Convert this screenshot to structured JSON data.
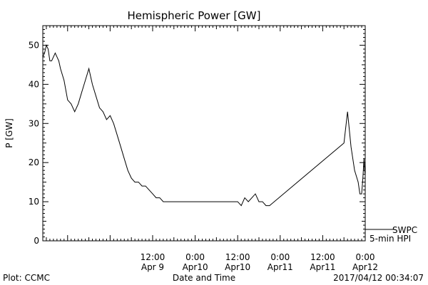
{
  "chart_data": {
    "type": "line",
    "title": "Hemispheric Power [GW]",
    "ylabel": "P [GW]",
    "xlabel": "Date and Time",
    "ylim": [
      0,
      55
    ],
    "yticks": [
      0,
      10,
      20,
      30,
      40,
      50
    ],
    "xrange": [
      "2017-04-08T05:00",
      "2017-04-12T00:00"
    ],
    "xticks": [
      {
        "t": "2017-04-09T12:00",
        "line1": "12:00",
        "line2": "Apr 9"
      },
      {
        "t": "2017-04-10T00:00",
        "line1": "0:00",
        "line2": "Apr10"
      },
      {
        "t": "2017-04-10T12:00",
        "line1": "12:00",
        "line2": "Apr10"
      },
      {
        "t": "2017-04-11T00:00",
        "line1": "0:00",
        "line2": "Apr11"
      },
      {
        "t": "2017-04-11T12:00",
        "line1": "12:00",
        "line2": "Apr11"
      },
      {
        "t": "2017-04-12T00:00",
        "line1": "0:00",
        "line2": "Apr12"
      }
    ],
    "grid": false,
    "legend": [
      "SWPC",
      "5-min HPI"
    ],
    "series": [
      {
        "x": [
          "2017-04-08T05:00",
          "2017-04-08T05:30",
          "2017-04-08T06:00",
          "2017-04-08T06:30",
          "2017-04-08T07:00",
          "2017-04-08T07:30",
          "2017-04-08T08:00",
          "2017-04-08T08:30",
          "2017-04-08T09:00",
          "2017-04-08T09:30",
          "2017-04-08T10:00",
          "2017-04-08T11:00",
          "2017-04-08T12:00",
          "2017-04-08T13:00",
          "2017-04-08T13:30",
          "2017-04-08T14:00",
          "2017-04-08T15:00",
          "2017-04-08T16:00",
          "2017-04-08T17:00",
          "2017-04-08T18:00",
          "2017-04-08T19:00",
          "2017-04-08T20:00",
          "2017-04-08T21:00",
          "2017-04-08T22:00",
          "2017-04-08T23:00",
          "2017-04-09T00:00",
          "2017-04-09T01:00",
          "2017-04-09T02:00",
          "2017-04-09T03:00",
          "2017-04-09T04:00",
          "2017-04-09T05:00",
          "2017-04-09T06:00",
          "2017-04-09T07:00",
          "2017-04-09T08:00",
          "2017-04-09T09:00",
          "2017-04-09T10:00",
          "2017-04-09T11:00",
          "2017-04-09T12:00",
          "2017-04-09T13:00",
          "2017-04-09T14:00",
          "2017-04-09T15:00",
          "2017-04-09T16:00",
          "2017-04-09T17:00",
          "2017-04-09T18:00",
          "2017-04-09T19:00",
          "2017-04-09T20:00",
          "2017-04-09T21:00",
          "2017-04-09T22:00",
          "2017-04-09T23:00",
          "2017-04-10T00:00",
          "2017-04-10T01:00",
          "2017-04-10T02:00",
          "2017-04-10T03:00",
          "2017-04-10T05:00",
          "2017-04-10T07:00",
          "2017-04-10T09:00",
          "2017-04-10T11:00",
          "2017-04-10T12:00",
          "2017-04-10T13:00",
          "2017-04-10T14:00",
          "2017-04-10T15:00",
          "2017-04-10T16:00",
          "2017-04-10T17:00",
          "2017-04-10T18:00",
          "2017-04-10T19:00",
          "2017-04-10T20:00",
          "2017-04-10T21:00",
          "2017-04-11T18:00",
          "2017-04-11T19:00",
          "2017-04-11T20:00",
          "2017-04-11T21:00",
          "2017-04-11T22:00",
          "2017-04-11T22:30",
          "2017-04-11T23:00",
          "2017-04-11T23:20",
          "2017-04-11T23:40",
          "2017-04-11T23:50",
          "2017-04-12T00:00"
        ],
        "y": [
          47,
          48,
          50,
          49,
          46,
          46,
          47,
          48,
          47,
          46,
          44,
          41,
          36,
          35,
          34,
          33,
          35,
          38,
          41,
          44,
          40,
          37,
          34,
          33,
          31,
          32,
          30,
          27,
          24,
          21,
          18,
          16,
          15,
          15,
          14,
          14,
          13,
          12,
          11,
          11,
          10,
          10,
          10,
          10,
          10,
          10,
          10,
          10,
          10,
          10,
          10,
          10,
          10,
          10,
          10,
          10,
          10,
          10,
          9,
          11,
          10,
          11,
          12,
          10,
          10,
          9,
          9,
          25,
          33,
          24,
          18,
          15,
          12,
          12,
          16,
          21,
          18,
          17
        ]
      }
    ],
    "footer_left": "Plot: CCMC",
    "footer_right": "2017/04/12 00:34:07"
  }
}
